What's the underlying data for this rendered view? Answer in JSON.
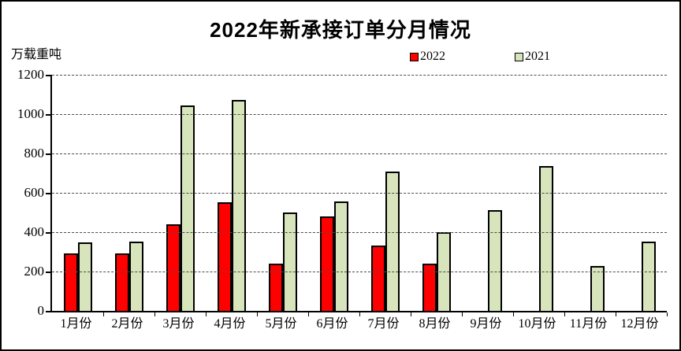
{
  "title": "2022年新承接订单分月情况",
  "unit_label": "万载重吨",
  "legend": {
    "items": [
      {
        "label": "2022",
        "color": "#FF0000"
      },
      {
        "label": "2021",
        "color": "#D7E4BC"
      }
    ]
  },
  "chart_data": {
    "type": "bar",
    "title": "2022年新承接订单分月情况",
    "ylabel": "万载重吨",
    "categories": [
      "1月份",
      "2月份",
      "3月份",
      "4月份",
      "5月份",
      "6月份",
      "7月份",
      "8月份",
      "9月份",
      "10月份",
      "11月份",
      "12月份"
    ],
    "series": [
      {
        "name": "2022",
        "color": "#FF0000",
        "values": [
          285,
          285,
          430,
          545,
          232,
          473,
          325,
          232,
          null,
          null,
          null,
          null
        ]
      },
      {
        "name": "2021",
        "color": "#D7E4BC",
        "values": [
          340,
          343,
          1035,
          1065,
          490,
          548,
          700,
          390,
          503,
          730,
          220,
          345
        ]
      }
    ],
    "ylim": [
      0,
      1200
    ],
    "yticks": [
      0,
      200,
      400,
      600,
      800,
      1000,
      1200
    ],
    "grid": "dashed-horizontal",
    "legend_position": "top",
    "bar_border_color": "#000000"
  }
}
